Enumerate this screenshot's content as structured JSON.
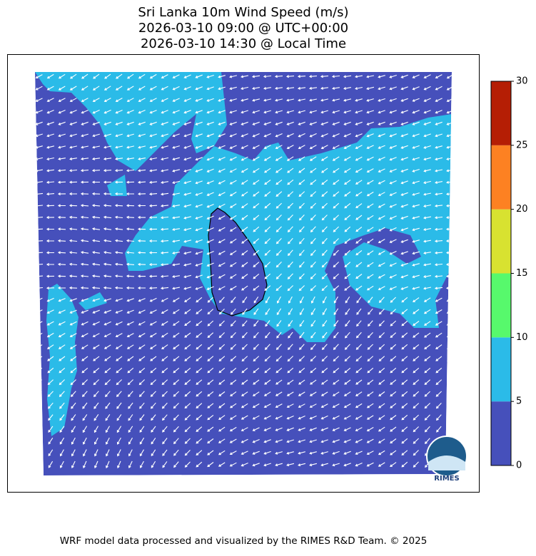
{
  "title": {
    "lines": [
      "Sri Lanka 10m Wind Speed (m/s)",
      "2026-03-10 09:00 @ UTC+00:00",
      "2026-03-10 14:30 @ Local Time"
    ]
  },
  "colorbar": {
    "ticks": [
      0,
      5,
      10,
      15,
      20,
      25,
      30
    ],
    "colors": [
      "#4650bb",
      "#2bbbe8",
      "#57f96c",
      "#d8e230",
      "#fd8122",
      "#b51e04"
    ]
  },
  "logo": {
    "text": "RIMES"
  },
  "footer": {
    "text": "WRF model data processed and visualized by the RIMES R&D Team. © 2025"
  }
}
